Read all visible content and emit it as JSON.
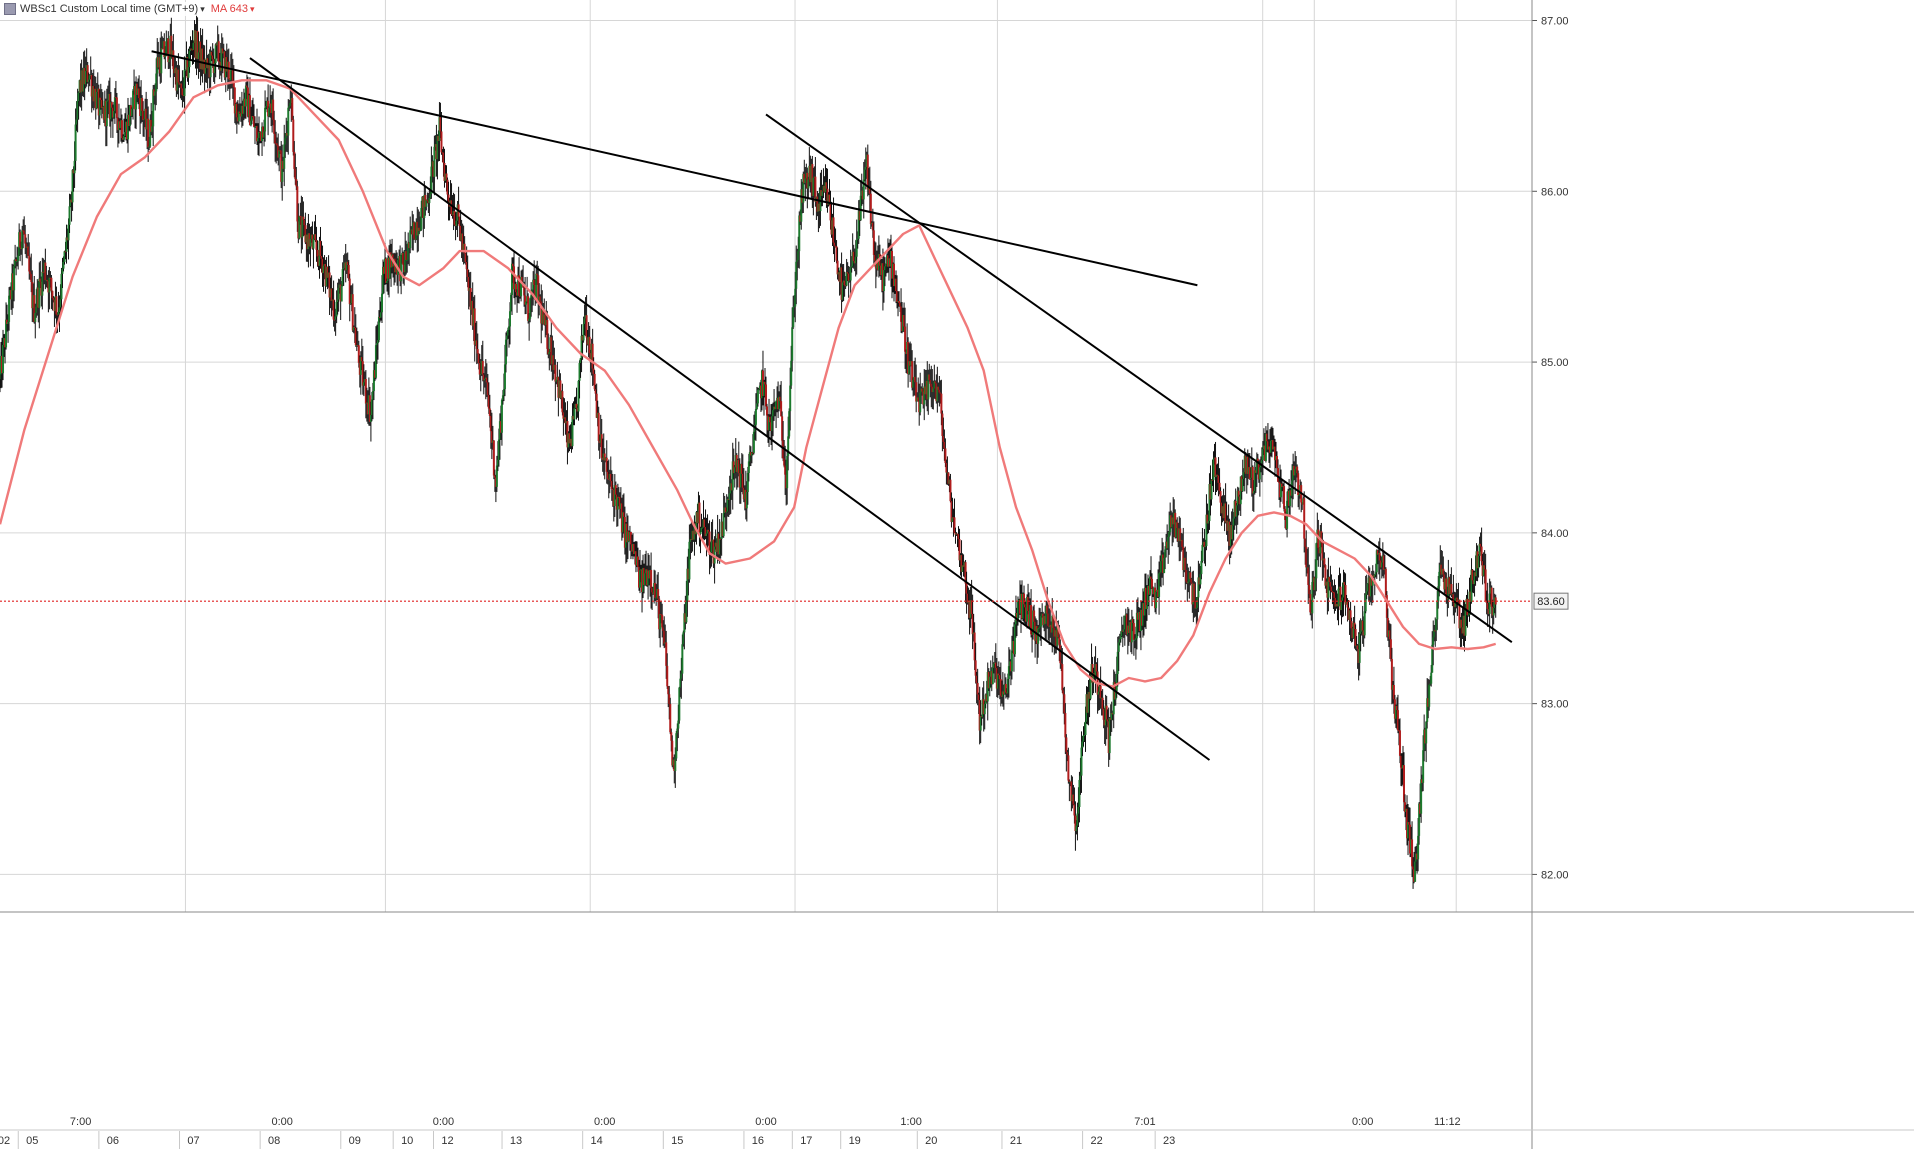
{
  "legend": {
    "symbol": "WBSc1 Custom Local time (GMT+9)",
    "ma_label": "MA 643"
  },
  "colors": {
    "background": "#ffffff",
    "grid": "#d6d6d6",
    "up_candle": "#1d7a2e",
    "down_candle": "#b01c1c",
    "wick": "#111111",
    "ma_line": "#f07a7a",
    "trendline": "#000000",
    "last_price_line": "#e02020",
    "axis_text": "#333333"
  },
  "chart_data": {
    "type": "line",
    "title": "",
    "series_name": "WBSc1",
    "ma_name": "MA 643",
    "y_axis": {
      "ylim": [
        81.78,
        87.12
      ],
      "ticks": [
        "87.00",
        "86.00",
        "85.00",
        "84.00",
        "83.00",
        "82.00"
      ],
      "tick_values": [
        87.0,
        86.0,
        85.0,
        84.0,
        83.0,
        82.0
      ],
      "position": "right"
    },
    "last_price": {
      "label": "83.60",
      "value": 83.6
    },
    "x_axis": {
      "xlim": [
        0,
        19.0
      ],
      "top_row": [
        {
          "label": "7:00",
          "x": 1.0
        },
        {
          "label": "0:00",
          "x": 3.5
        },
        {
          "label": "0:00",
          "x": 5.5
        },
        {
          "label": "0:00",
          "x": 7.5
        },
        {
          "label": "0:00",
          "x": 9.5
        },
        {
          "label": "1:00",
          "x": 11.3
        },
        {
          "label": "7:01",
          "x": 14.2
        },
        {
          "label": "0:00",
          "x": 16.9
        },
        {
          "label": "11:12",
          "x": 17.95
        }
      ],
      "bottom_row": [
        {
          "label": "02",
          "x": 0.05
        },
        {
          "label": "05",
          "x": 0.4
        },
        {
          "label": "06",
          "x": 1.4
        },
        {
          "label": "07",
          "x": 2.4
        },
        {
          "label": "08",
          "x": 3.4
        },
        {
          "label": "09",
          "x": 4.4
        },
        {
          "label": "10",
          "x": 5.05
        },
        {
          "label": "12",
          "x": 5.55
        },
        {
          "label": "13",
          "x": 6.4
        },
        {
          "label": "14",
          "x": 7.4
        },
        {
          "label": "15",
          "x": 8.4
        },
        {
          "label": "16",
          "x": 9.4
        },
        {
          "label": "17",
          "x": 10.0
        },
        {
          "label": "19",
          "x": 10.6
        },
        {
          "label": "20",
          "x": 11.55
        },
        {
          "label": "21",
          "x": 12.6
        },
        {
          "label": "22",
          "x": 13.6
        },
        {
          "label": "23",
          "x": 14.5
        }
      ],
      "day_boundaries": [
        2.3,
        4.78,
        7.32,
        9.86,
        12.37,
        15.66,
        16.3,
        18.06
      ]
    },
    "price_anchors": [
      [
        0.0,
        84.9
      ],
      [
        0.12,
        85.35
      ],
      [
        0.28,
        85.8
      ],
      [
        0.42,
        85.3
      ],
      [
        0.55,
        85.55
      ],
      [
        0.72,
        85.3
      ],
      [
        0.88,
        85.9
      ],
      [
        0.98,
        86.6
      ],
      [
        1.1,
        86.7
      ],
      [
        1.25,
        86.45
      ],
      [
        1.4,
        86.5
      ],
      [
        1.55,
        86.35
      ],
      [
        1.7,
        86.6
      ],
      [
        1.85,
        86.3
      ],
      [
        1.95,
        86.75
      ],
      [
        2.1,
        86.85
      ],
      [
        2.25,
        86.55
      ],
      [
        2.4,
        86.9
      ],
      [
        2.55,
        86.7
      ],
      [
        2.7,
        86.8
      ],
      [
        2.85,
        86.7
      ],
      [
        2.95,
        86.45
      ],
      [
        3.05,
        86.55
      ],
      [
        3.2,
        86.3
      ],
      [
        3.35,
        86.55
      ],
      [
        3.5,
        86.1
      ],
      [
        3.6,
        86.6
      ],
      [
        3.7,
        85.8
      ],
      [
        3.85,
        85.7
      ],
      [
        4.0,
        85.6
      ],
      [
        4.15,
        85.3
      ],
      [
        4.3,
        85.55
      ],
      [
        4.45,
        85.0
      ],
      [
        4.6,
        84.7
      ],
      [
        4.75,
        85.5
      ],
      [
        4.85,
        85.6
      ],
      [
        5.0,
        85.55
      ],
      [
        5.15,
        85.8
      ],
      [
        5.3,
        85.95
      ],
      [
        5.45,
        86.35
      ],
      [
        5.55,
        86.0
      ],
      [
        5.7,
        85.8
      ],
      [
        5.85,
        85.3
      ],
      [
        5.95,
        85.0
      ],
      [
        6.05,
        84.8
      ],
      [
        6.15,
        84.3
      ],
      [
        6.25,
        84.9
      ],
      [
        6.35,
        85.5
      ],
      [
        6.45,
        85.45
      ],
      [
        6.55,
        85.3
      ],
      [
        6.65,
        85.45
      ],
      [
        6.75,
        85.2
      ],
      [
        6.85,
        85.05
      ],
      [
        6.95,
        84.8
      ],
      [
        7.05,
        84.5
      ],
      [
        7.15,
        84.7
      ],
      [
        7.25,
        85.3
      ],
      [
        7.35,
        85.0
      ],
      [
        7.45,
        84.5
      ],
      [
        7.55,
        84.3
      ],
      [
        7.65,
        84.2
      ],
      [
        7.75,
        84.0
      ],
      [
        7.85,
        83.9
      ],
      [
        7.95,
        83.7
      ],
      [
        8.05,
        83.8
      ],
      [
        8.15,
        83.6
      ],
      [
        8.25,
        83.3
      ],
      [
        8.35,
        82.6
      ],
      [
        8.45,
        83.2
      ],
      [
        8.55,
        83.9
      ],
      [
        8.65,
        84.1
      ],
      [
        8.75,
        84.0
      ],
      [
        8.85,
        83.9
      ],
      [
        8.95,
        84.0
      ],
      [
        9.05,
        84.3
      ],
      [
        9.15,
        84.4
      ],
      [
        9.25,
        84.2
      ],
      [
        9.35,
        84.6
      ],
      [
        9.45,
        84.9
      ],
      [
        9.55,
        84.6
      ],
      [
        9.65,
        84.8
      ],
      [
        9.75,
        84.35
      ],
      [
        9.85,
        85.4
      ],
      [
        9.95,
        86.0
      ],
      [
        10.05,
        86.1
      ],
      [
        10.15,
        85.9
      ],
      [
        10.25,
        86.0
      ],
      [
        10.35,
        85.7
      ],
      [
        10.45,
        85.4
      ],
      [
        10.55,
        85.5
      ],
      [
        10.65,
        85.8
      ],
      [
        10.75,
        86.15
      ],
      [
        10.85,
        85.6
      ],
      [
        10.95,
        85.5
      ],
      [
        11.05,
        85.6
      ],
      [
        11.15,
        85.35
      ],
      [
        11.25,
        85.05
      ],
      [
        11.35,
        84.8
      ],
      [
        11.45,
        84.75
      ],
      [
        11.55,
        84.9
      ],
      [
        11.65,
        84.8
      ],
      [
        11.75,
        84.3
      ],
      [
        11.85,
        84.0
      ],
      [
        11.95,
        83.8
      ],
      [
        12.05,
        83.5
      ],
      [
        12.15,
        82.9
      ],
      [
        12.25,
        83.1
      ],
      [
        12.35,
        83.2
      ],
      [
        12.45,
        83.0
      ],
      [
        12.55,
        83.3
      ],
      [
        12.65,
        83.6
      ],
      [
        12.75,
        83.55
      ],
      [
        12.85,
        83.4
      ],
      [
        12.95,
        83.5
      ],
      [
        13.05,
        83.5
      ],
      [
        13.15,
        83.3
      ],
      [
        13.25,
        82.6
      ],
      [
        13.35,
        82.3
      ],
      [
        13.45,
        82.9
      ],
      [
        13.55,
        83.2
      ],
      [
        13.65,
        83.1
      ],
      [
        13.75,
        82.8
      ],
      [
        13.85,
        83.2
      ],
      [
        13.95,
        83.5
      ],
      [
        14.05,
        83.4
      ],
      [
        14.15,
        83.5
      ],
      [
        14.25,
        83.7
      ],
      [
        14.35,
        83.6
      ],
      [
        14.45,
        83.9
      ],
      [
        14.55,
        84.1
      ],
      [
        14.65,
        83.9
      ],
      [
        14.75,
        83.7
      ],
      [
        14.85,
        83.6
      ],
      [
        14.95,
        84.0
      ],
      [
        15.05,
        84.4
      ],
      [
        15.15,
        84.2
      ],
      [
        15.25,
        83.95
      ],
      [
        15.35,
        84.2
      ],
      [
        15.45,
        84.4
      ],
      [
        15.55,
        84.3
      ],
      [
        15.65,
        84.45
      ],
      [
        15.75,
        84.55
      ],
      [
        15.85,
        84.35
      ],
      [
        15.95,
        84.1
      ],
      [
        16.05,
        84.4
      ],
      [
        16.15,
        84.2
      ],
      [
        16.25,
        83.5
      ],
      [
        16.35,
        84.0
      ],
      [
        16.45,
        83.7
      ],
      [
        16.55,
        83.6
      ],
      [
        16.65,
        83.65
      ],
      [
        16.75,
        83.5
      ],
      [
        16.85,
        83.3
      ],
      [
        16.95,
        83.6
      ],
      [
        17.05,
        83.8
      ],
      [
        17.15,
        83.9
      ],
      [
        17.25,
        83.2
      ],
      [
        17.35,
        82.8
      ],
      [
        17.45,
        82.3
      ],
      [
        17.55,
        82.0
      ],
      [
        17.65,
        82.7
      ],
      [
        17.75,
        83.2
      ],
      [
        17.85,
        83.8
      ],
      [
        17.95,
        83.7
      ],
      [
        18.05,
        83.6
      ],
      [
        18.15,
        83.45
      ],
      [
        18.25,
        83.7
      ],
      [
        18.35,
        83.9
      ],
      [
        18.45,
        83.6
      ],
      [
        18.55,
        83.6
      ]
    ],
    "ma_points": [
      [
        0.0,
        84.05
      ],
      [
        0.3,
        84.6
      ],
      [
        0.6,
        85.05
      ],
      [
        0.9,
        85.5
      ],
      [
        1.2,
        85.85
      ],
      [
        1.5,
        86.1
      ],
      [
        1.8,
        86.2
      ],
      [
        2.1,
        86.35
      ],
      [
        2.4,
        86.55
      ],
      [
        2.7,
        86.62
      ],
      [
        3.0,
        86.65
      ],
      [
        3.3,
        86.65
      ],
      [
        3.6,
        86.6
      ],
      [
        3.9,
        86.45
      ],
      [
        4.2,
        86.3
      ],
      [
        4.5,
        86.0
      ],
      [
        4.8,
        85.65
      ],
      [
        5.0,
        85.5
      ],
      [
        5.2,
        85.45
      ],
      [
        5.5,
        85.55
      ],
      [
        5.7,
        85.65
      ],
      [
        6.0,
        85.65
      ],
      [
        6.3,
        85.55
      ],
      [
        6.6,
        85.4
      ],
      [
        6.9,
        85.2
      ],
      [
        7.2,
        85.05
      ],
      [
        7.5,
        84.95
      ],
      [
        7.8,
        84.75
      ],
      [
        8.1,
        84.5
      ],
      [
        8.4,
        84.25
      ],
      [
        8.6,
        84.05
      ],
      [
        8.8,
        83.88
      ],
      [
        9.0,
        83.82
      ],
      [
        9.3,
        83.85
      ],
      [
        9.6,
        83.95
      ],
      [
        9.85,
        84.15
      ],
      [
        10.0,
        84.5
      ],
      [
        10.2,
        84.85
      ],
      [
        10.4,
        85.2
      ],
      [
        10.6,
        85.45
      ],
      [
        10.8,
        85.55
      ],
      [
        11.0,
        85.65
      ],
      [
        11.2,
        85.75
      ],
      [
        11.4,
        85.8
      ],
      [
        11.6,
        85.6
      ],
      [
        11.8,
        85.4
      ],
      [
        12.0,
        85.2
      ],
      [
        12.2,
        84.95
      ],
      [
        12.4,
        84.5
      ],
      [
        12.6,
        84.15
      ],
      [
        12.8,
        83.9
      ],
      [
        13.0,
        83.6
      ],
      [
        13.2,
        83.35
      ],
      [
        13.4,
        83.2
      ],
      [
        13.6,
        83.12
      ],
      [
        13.8,
        83.1
      ],
      [
        14.0,
        83.15
      ],
      [
        14.2,
        83.13
      ],
      [
        14.4,
        83.15
      ],
      [
        14.6,
        83.25
      ],
      [
        14.8,
        83.4
      ],
      [
        15.0,
        83.65
      ],
      [
        15.2,
        83.85
      ],
      [
        15.4,
        84.0
      ],
      [
        15.6,
        84.1
      ],
      [
        15.8,
        84.12
      ],
      [
        16.0,
        84.1
      ],
      [
        16.2,
        84.05
      ],
      [
        16.4,
        83.95
      ],
      [
        16.6,
        83.9
      ],
      [
        16.8,
        83.85
      ],
      [
        17.0,
        83.75
      ],
      [
        17.2,
        83.6
      ],
      [
        17.4,
        83.45
      ],
      [
        17.6,
        83.35
      ],
      [
        17.8,
        83.32
      ],
      [
        18.0,
        83.33
      ],
      [
        18.2,
        83.32
      ],
      [
        18.4,
        83.33
      ],
      [
        18.55,
        83.35
      ]
    ],
    "trendlines": [
      [
        [
          1.88,
          86.82
        ],
        [
          14.85,
          85.45
        ]
      ],
      [
        [
          3.1,
          86.78
        ],
        [
          15.0,
          82.67
        ]
      ],
      [
        [
          9.5,
          86.45
        ],
        [
          18.75,
          83.36
        ]
      ]
    ]
  }
}
